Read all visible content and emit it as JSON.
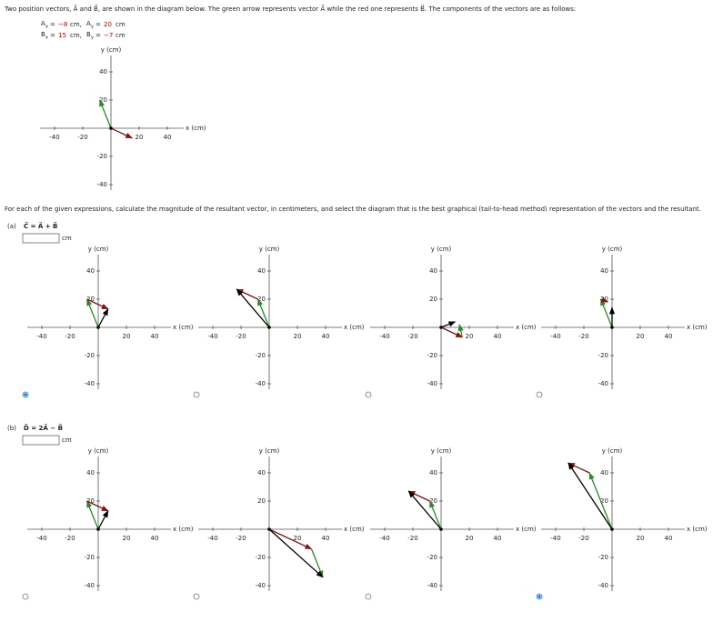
{
  "intro": "Two position vectors, A⃗ and B⃗, are shown in the diagram below. The green arrow represents vector A⃗ while the red one represents B⃗. The components of the vectors are as follows:",
  "components": [
    [
      {
        "symbol": "A",
        "sub": "x",
        "value": "−8",
        "unit": "cm,"
      },
      {
        "symbol": "A",
        "sub": "y",
        "value": "20",
        "unit": "cm"
      }
    ],
    [
      {
        "symbol": "B",
        "sub": "x",
        "value": "15",
        "unit": "cm,"
      },
      {
        "symbol": "B",
        "sub": "y",
        "value": "−7",
        "unit": "cm"
      }
    ]
  ],
  "axis": {
    "xlabel": "x (cm)",
    "ylabel": "y (cm)",
    "xticks": [
      -40,
      -20,
      20,
      40
    ],
    "yticks": [
      40,
      20,
      -20,
      -40
    ]
  },
  "main_graph": {
    "vectors": [
      {
        "color": "#2a8a2a",
        "tail": [
          0,
          0
        ],
        "head": [
          -8,
          20
        ]
      },
      {
        "color": "#8b1010",
        "tail": [
          0,
          0
        ],
        "head": [
          15,
          -7
        ]
      }
    ]
  },
  "instruction": "For each of the given expressions, calculate the magnitude of the resultant vector, in centimeters, and select the diagram that is the best graphical (tail-to-head method) representation of the vectors and the resultant.",
  "parts": [
    {
      "label": "(a)",
      "expression": "C⃗ = A⃗ + B⃗",
      "unit": "cm",
      "options": [
        {
          "selected": true,
          "vectors": [
            {
              "color": "#2a8a2a",
              "tail": [
                0,
                0
              ],
              "head": [
                -8,
                20
              ]
            },
            {
              "color": "#8b1010",
              "tail": [
                -8,
                20
              ],
              "head": [
                7,
                13
              ]
            },
            {
              "color": "#000000",
              "tail": [
                0,
                0
              ],
              "head": [
                7,
                13
              ]
            }
          ]
        },
        {
          "selected": false,
          "vectors": [
            {
              "color": "#2a8a2a",
              "tail": [
                0,
                0
              ],
              "head": [
                -8,
                20
              ]
            },
            {
              "color": "#8b1010",
              "tail": [
                -8,
                20
              ],
              "head": [
                -23,
                27
              ]
            },
            {
              "color": "#000000",
              "tail": [
                0,
                0
              ],
              "head": [
                -23,
                27
              ]
            }
          ]
        },
        {
          "selected": false,
          "vectors": [
            {
              "color": "#8b1010",
              "tail": [
                0,
                0
              ],
              "head": [
                15,
                -7
              ]
            },
            {
              "color": "#2a8a2a",
              "tail": [
                15,
                -7
              ],
              "head": [
                13,
                2
              ]
            },
            {
              "color": "#000000",
              "tail": [
                0,
                0
              ],
              "head": [
                10,
                4
              ]
            }
          ]
        },
        {
          "selected": false,
          "vectors": [
            {
              "color": "#2a8a2a",
              "tail": [
                0,
                0
              ],
              "head": [
                -8,
                20
              ]
            },
            {
              "color": "#8b1010",
              "tail": [
                -8,
                20
              ],
              "head": [
                -3,
                18
              ]
            },
            {
              "color": "#000000",
              "tail": [
                0,
                0
              ],
              "head": [
                0,
                14
              ]
            }
          ]
        }
      ]
    },
    {
      "label": "(b)",
      "expression": "D⃗ = 2A⃗ − B⃗",
      "unit": "cm",
      "options": [
        {
          "selected": false,
          "vectors": [
            {
              "color": "#2a8a2a",
              "tail": [
                0,
                0
              ],
              "head": [
                -8,
                20
              ]
            },
            {
              "color": "#8b1010",
              "tail": [
                -8,
                20
              ],
              "head": [
                7,
                13
              ]
            },
            {
              "color": "#000000",
              "tail": [
                0,
                0
              ],
              "head": [
                7,
                13
              ]
            }
          ]
        },
        {
          "selected": false,
          "vectors": [
            {
              "color": "#8b1010",
              "tail": [
                0,
                0
              ],
              "head": [
                30,
                -14
              ]
            },
            {
              "color": "#2a8a2a",
              "tail": [
                30,
                -14
              ],
              "head": [
                38,
                -34
              ]
            },
            {
              "color": "#000000",
              "tail": [
                0,
                0
              ],
              "head": [
                38,
                -34
              ]
            }
          ]
        },
        {
          "selected": false,
          "vectors": [
            {
              "color": "#2a8a2a",
              "tail": [
                0,
                0
              ],
              "head": [
                -8,
                20
              ]
            },
            {
              "color": "#8b1010",
              "tail": [
                -8,
                20
              ],
              "head": [
                -23,
                27
              ]
            },
            {
              "color": "#000000",
              "tail": [
                0,
                0
              ],
              "head": [
                -23,
                27
              ]
            }
          ]
        },
        {
          "selected": true,
          "vectors": [
            {
              "color": "#2a8a2a",
              "tail": [
                0,
                0
              ],
              "head": [
                -16,
                40
              ]
            },
            {
              "color": "#8b1010",
              "tail": [
                -16,
                40
              ],
              "head": [
                -31,
                47
              ]
            },
            {
              "color": "#000000",
              "tail": [
                0,
                0
              ],
              "head": [
                -31,
                47
              ]
            }
          ]
        }
      ]
    }
  ]
}
